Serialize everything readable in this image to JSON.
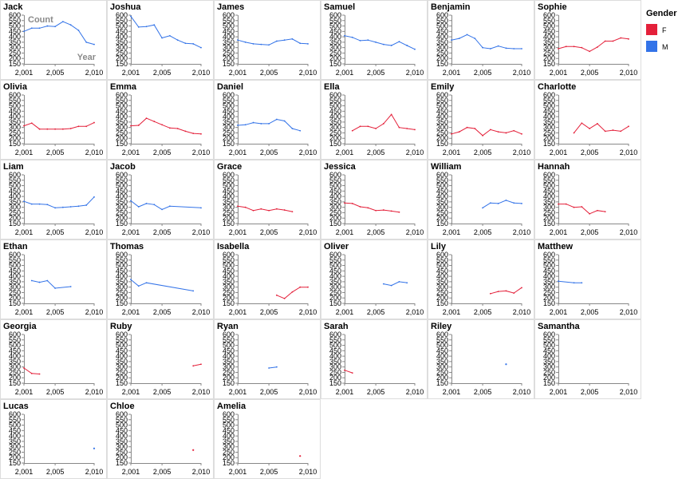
{
  "chart_data": {
    "type": "line",
    "layout": "small-multiples",
    "x_field": "Year",
    "y_field": "Count",
    "color_field": "Gender",
    "xlim": [
      2001,
      2010
    ],
    "ylim": [
      150,
      600
    ],
    "x_ticks": [
      "2,001",
      "2,005",
      "2,010"
    ],
    "x_tick_values": [
      2001,
      2005,
      2010
    ],
    "y_ticks": [
      600,
      550,
      500,
      450,
      400,
      350,
      300,
      250,
      200,
      150
    ],
    "axis_hint": {
      "y": "Count",
      "x": "Year"
    },
    "legend": {
      "title": "Gender",
      "entries": [
        {
          "label": "F",
          "color": "#e4203a"
        },
        {
          "label": "M",
          "color": "#3373e8"
        }
      ]
    },
    "panels": [
      {
        "name": "Jack",
        "gender": "M",
        "points": [
          [
            2001,
            450
          ],
          [
            2002,
            480
          ],
          [
            2003,
            480
          ],
          [
            2004,
            500
          ],
          [
            2005,
            495
          ],
          [
            2006,
            540
          ],
          [
            2007,
            510
          ],
          [
            2008,
            460
          ],
          [
            2009,
            350
          ],
          [
            2010,
            330
          ]
        ]
      },
      {
        "name": "Joshua",
        "gender": "M",
        "points": [
          [
            2001,
            590
          ],
          [
            2002,
            490
          ],
          [
            2003,
            495
          ],
          [
            2004,
            510
          ],
          [
            2005,
            390
          ],
          [
            2006,
            410
          ],
          [
            2007,
            370
          ],
          [
            2008,
            340
          ],
          [
            2009,
            335
          ],
          [
            2010,
            300
          ]
        ]
      },
      {
        "name": "James",
        "gender": "M",
        "points": [
          [
            2001,
            370
          ],
          [
            2002,
            350
          ],
          [
            2003,
            335
          ],
          [
            2004,
            330
          ],
          [
            2005,
            325
          ],
          [
            2006,
            360
          ],
          [
            2007,
            370
          ],
          [
            2008,
            380
          ],
          [
            2009,
            340
          ],
          [
            2010,
            335
          ]
        ]
      },
      {
        "name": "Samuel",
        "gender": "M",
        "points": [
          [
            2001,
            410
          ],
          [
            2002,
            395
          ],
          [
            2003,
            365
          ],
          [
            2004,
            370
          ],
          [
            2005,
            350
          ],
          [
            2006,
            330
          ],
          [
            2007,
            320
          ],
          [
            2008,
            355
          ],
          [
            2009,
            320
          ],
          [
            2010,
            285
          ]
        ]
      },
      {
        "name": "Benjamin",
        "gender": "M",
        "points": [
          [
            2001,
            370
          ],
          [
            2002,
            385
          ],
          [
            2003,
            420
          ],
          [
            2004,
            385
          ],
          [
            2005,
            300
          ],
          [
            2006,
            290
          ],
          [
            2007,
            315
          ],
          [
            2008,
            295
          ],
          [
            2009,
            290
          ],
          [
            2010,
            290
          ]
        ]
      },
      {
        "name": "Sophie",
        "gender": "F",
        "points": [
          [
            2001,
            290
          ],
          [
            2002,
            310
          ],
          [
            2003,
            310
          ],
          [
            2004,
            300
          ],
          [
            2005,
            265
          ],
          [
            2006,
            305
          ],
          [
            2007,
            360
          ],
          [
            2008,
            360
          ],
          [
            2009,
            390
          ],
          [
            2010,
            380
          ]
        ]
      },
      {
        "name": "Olivia",
        "gender": "F",
        "points": [
          [
            2001,
            315
          ],
          [
            2002,
            340
          ],
          [
            2003,
            285
          ],
          [
            2004,
            285
          ],
          [
            2005,
            285
          ],
          [
            2006,
            285
          ],
          [
            2007,
            290
          ],
          [
            2008,
            310
          ],
          [
            2009,
            310
          ],
          [
            2010,
            345
          ]
        ]
      },
      {
        "name": "Emma",
        "gender": "F",
        "points": [
          [
            2001,
            315
          ],
          [
            2002,
            320
          ],
          [
            2003,
            385
          ],
          [
            2004,
            355
          ],
          [
            2005,
            325
          ],
          [
            2006,
            295
          ],
          [
            2007,
            290
          ],
          [
            2008,
            265
          ],
          [
            2009,
            245
          ],
          [
            2010,
            240
          ]
        ]
      },
      {
        "name": "Daniel",
        "gender": "M",
        "points": [
          [
            2001,
            320
          ],
          [
            2002,
            325
          ],
          [
            2003,
            345
          ],
          [
            2004,
            335
          ],
          [
            2005,
            335
          ],
          [
            2006,
            375
          ],
          [
            2007,
            360
          ],
          [
            2008,
            290
          ],
          [
            2009,
            270
          ]
        ]
      },
      {
        "name": "Ella",
        "gender": "F",
        "points": [
          [
            2002,
            270
          ],
          [
            2003,
            310
          ],
          [
            2004,
            310
          ],
          [
            2005,
            290
          ],
          [
            2006,
            335
          ],
          [
            2007,
            420
          ],
          [
            2008,
            300
          ],
          [
            2009,
            290
          ],
          [
            2010,
            280
          ]
        ]
      },
      {
        "name": "Emily",
        "gender": "F",
        "points": [
          [
            2001,
            240
          ],
          [
            2002,
            260
          ],
          [
            2003,
            300
          ],
          [
            2004,
            290
          ],
          [
            2005,
            225
          ],
          [
            2006,
            280
          ],
          [
            2007,
            260
          ],
          [
            2008,
            250
          ],
          [
            2009,
            270
          ],
          [
            2010,
            240
          ]
        ]
      },
      {
        "name": "Charlotte",
        "gender": "F",
        "points": [
          [
            2003,
            250
          ],
          [
            2004,
            340
          ],
          [
            2005,
            290
          ],
          [
            2006,
            335
          ],
          [
            2007,
            265
          ],
          [
            2008,
            275
          ],
          [
            2009,
            265
          ],
          [
            2010,
            310
          ]
        ]
      },
      {
        "name": "Liam",
        "gender": "M",
        "points": [
          [
            2001,
            355
          ],
          [
            2002,
            330
          ],
          [
            2003,
            330
          ],
          [
            2004,
            325
          ],
          [
            2005,
            295
          ],
          [
            2006,
            300
          ],
          [
            2007,
            305
          ],
          [
            2008,
            310
          ],
          [
            2009,
            320
          ],
          [
            2010,
            395
          ]
        ]
      },
      {
        "name": "Jacob",
        "gender": "M",
        "points": [
          [
            2001,
            360
          ],
          [
            2002,
            305
          ],
          [
            2003,
            335
          ],
          [
            2004,
            325
          ],
          [
            2005,
            280
          ],
          [
            2006,
            310
          ],
          [
            2010,
            295
          ]
        ]
      },
      {
        "name": "Grace",
        "gender": "F",
        "points": [
          [
            2001,
            310
          ],
          [
            2002,
            300
          ],
          [
            2003,
            270
          ],
          [
            2004,
            285
          ],
          [
            2005,
            270
          ],
          [
            2006,
            285
          ],
          [
            2007,
            275
          ],
          [
            2008,
            260
          ]
        ]
      },
      {
        "name": "Jessica",
        "gender": "F",
        "points": [
          [
            2001,
            340
          ],
          [
            2002,
            335
          ],
          [
            2003,
            305
          ],
          [
            2004,
            295
          ],
          [
            2005,
            270
          ],
          [
            2006,
            275
          ],
          [
            2007,
            265
          ],
          [
            2008,
            255
          ]
        ]
      },
      {
        "name": "William",
        "gender": "M",
        "points": [
          [
            2005,
            295
          ],
          [
            2006,
            340
          ],
          [
            2007,
            335
          ],
          [
            2008,
            365
          ],
          [
            2009,
            340
          ],
          [
            2010,
            335
          ]
        ]
      },
      {
        "name": "Hannah",
        "gender": "F",
        "points": [
          [
            2001,
            330
          ],
          [
            2002,
            330
          ],
          [
            2003,
            300
          ],
          [
            2004,
            305
          ],
          [
            2005,
            240
          ],
          [
            2006,
            270
          ],
          [
            2007,
            260
          ]
        ]
      },
      {
        "name": "Ethan",
        "gender": "M",
        "points": [
          [
            2002,
            360
          ],
          [
            2003,
            345
          ],
          [
            2004,
            360
          ],
          [
            2005,
            290
          ],
          [
            2007,
            305
          ]
        ]
      },
      {
        "name": "Thomas",
        "gender": "M",
        "points": [
          [
            2001,
            370
          ],
          [
            2002,
            310
          ],
          [
            2003,
            340
          ],
          [
            2009,
            265
          ]
        ]
      },
      {
        "name": "Isabella",
        "gender": "F",
        "points": [
          [
            2006,
            225
          ],
          [
            2007,
            195
          ],
          [
            2008,
            255
          ],
          [
            2009,
            300
          ],
          [
            2010,
            300
          ]
        ]
      },
      {
        "name": "Oliver",
        "gender": "M",
        "points": [
          [
            2006,
            330
          ],
          [
            2007,
            315
          ],
          [
            2008,
            350
          ],
          [
            2009,
            340
          ]
        ]
      },
      {
        "name": "Lily",
        "gender": "F",
        "points": [
          [
            2006,
            240
          ],
          [
            2007,
            260
          ],
          [
            2008,
            265
          ],
          [
            2009,
            245
          ],
          [
            2010,
            295
          ]
        ]
      },
      {
        "name": "Matthew",
        "gender": "M",
        "points": [
          [
            2001,
            355
          ],
          [
            2003,
            340
          ],
          [
            2004,
            340
          ]
        ]
      },
      {
        "name": "Georgia",
        "gender": "F",
        "points": [
          [
            2001,
            290
          ],
          [
            2002,
            240
          ],
          [
            2003,
            235
          ]
        ]
      },
      {
        "name": "Ruby",
        "gender": "F",
        "points": [
          [
            2009,
            310
          ],
          [
            2010,
            325
          ]
        ]
      },
      {
        "name": "Ryan",
        "gender": "M",
        "points": [
          [
            2005,
            290
          ],
          [
            2006,
            300
          ]
        ]
      },
      {
        "name": "Sarah",
        "gender": "F",
        "points": [
          [
            2001,
            270
          ],
          [
            2002,
            245
          ]
        ]
      },
      {
        "name": "Riley",
        "gender": "M",
        "points": [
          [
            2008,
            325
          ]
        ]
      },
      {
        "name": "Samantha",
        "gender": "F",
        "points": []
      },
      {
        "name": "Lucas",
        "gender": "M",
        "points": [
          [
            2010,
            285
          ]
        ]
      },
      {
        "name": "Chloe",
        "gender": "F",
        "points": [
          [
            2009,
            270
          ]
        ]
      },
      {
        "name": "Amelia",
        "gender": "F",
        "points": [
          [
            2009,
            215
          ]
        ]
      }
    ]
  }
}
